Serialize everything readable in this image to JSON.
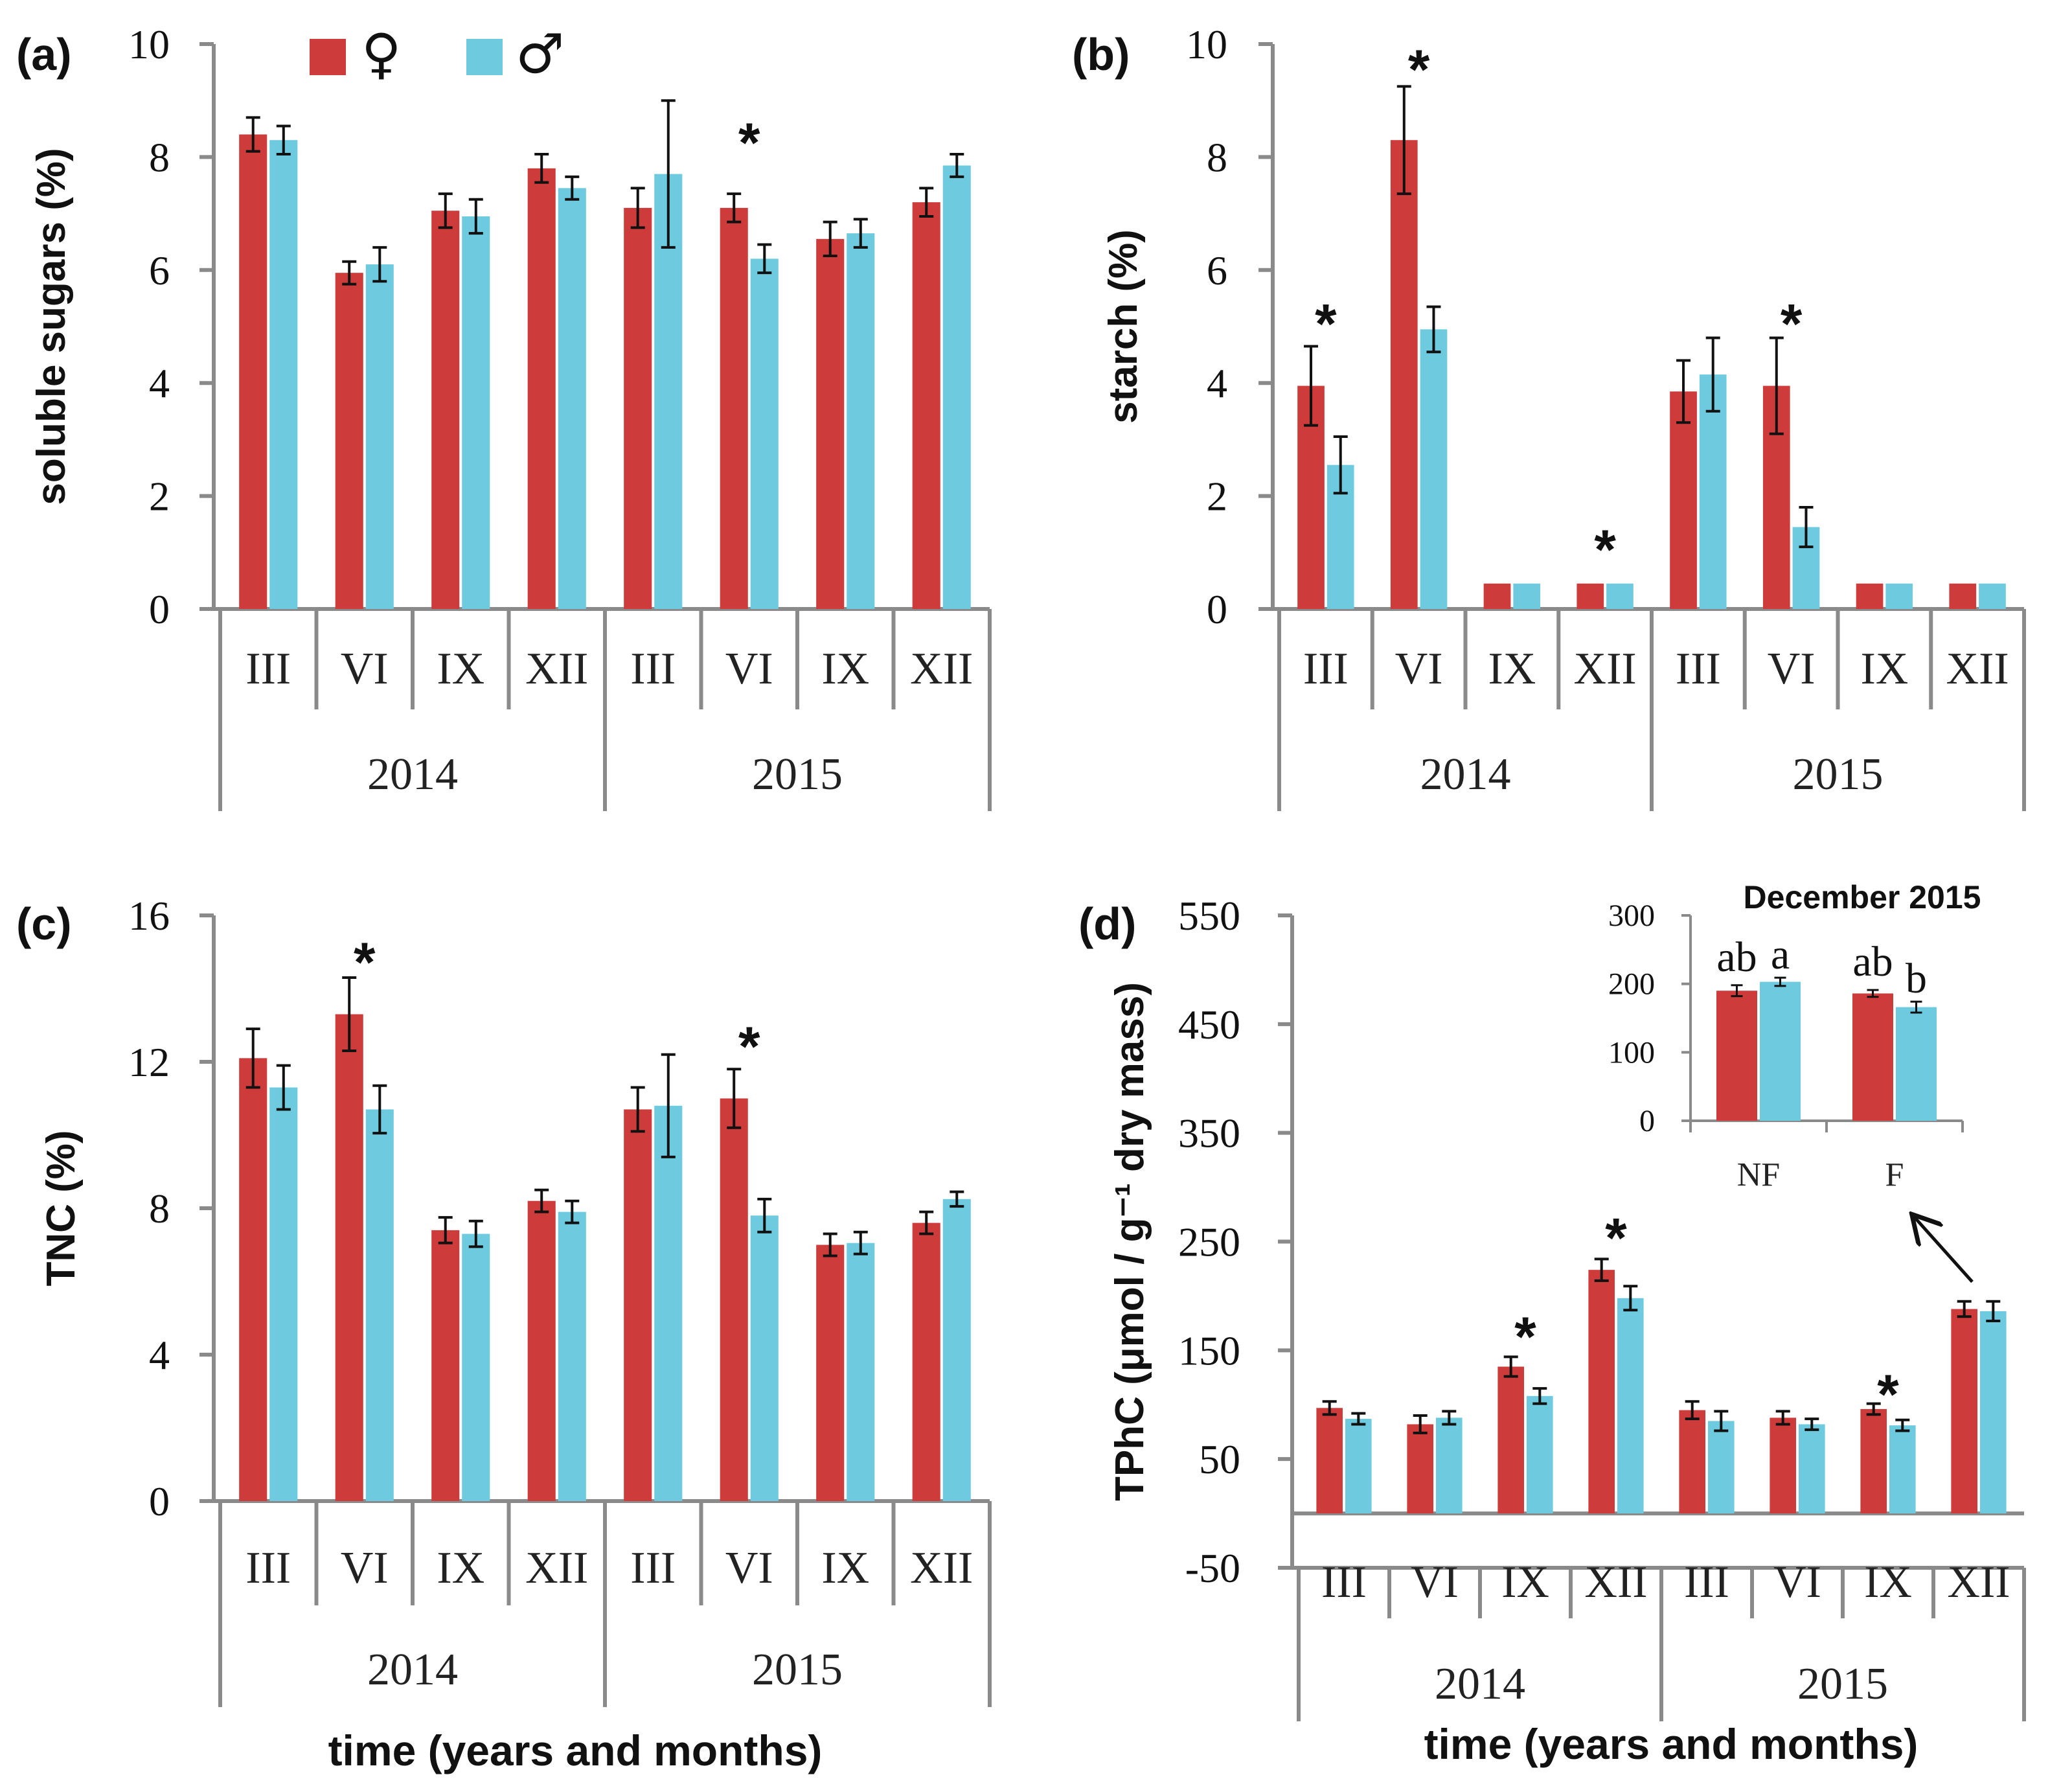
{
  "colors": {
    "female": "#cd3b3b",
    "male": "#6ecadf",
    "axis": "#8a8a8a",
    "error": "#111111"
  },
  "legend": {
    "female_symbol": "♀",
    "male_symbol": "♂"
  },
  "xlabel": "time (years and months)",
  "chart_data": [
    {
      "id": "a",
      "label": "(a)",
      "type": "bar",
      "title": "",
      "ylabel": "soluble sugars (%)",
      "xlabel": "",
      "ylim": [
        0,
        10
      ],
      "yticks": [
        0,
        2,
        4,
        6,
        8,
        10
      ],
      "categories": [
        "III",
        "VI",
        "IX",
        "XII",
        "III",
        "VI",
        "IX",
        "XII"
      ],
      "groups": [
        {
          "name": "2014",
          "count": 4
        },
        {
          "name": "2015",
          "count": 4
        }
      ],
      "series": [
        {
          "name": "♀",
          "values": [
            8.4,
            5.95,
            7.05,
            7.8,
            7.1,
            7.1,
            6.55,
            7.2
          ],
          "errors": [
            0.3,
            0.2,
            0.3,
            0.25,
            0.35,
            0.25,
            0.3,
            0.25
          ]
        },
        {
          "name": "♂",
          "values": [
            8.3,
            6.1,
            6.95,
            7.45,
            7.7,
            6.2,
            6.65,
            7.85
          ],
          "errors": [
            0.25,
            0.3,
            0.3,
            0.2,
            1.3,
            0.25,
            0.25,
            0.2
          ]
        }
      ],
      "significance": [
        {
          "index": 5,
          "label": "*",
          "value": 8.3
        }
      ]
    },
    {
      "id": "b",
      "label": "(b)",
      "type": "bar",
      "title": "",
      "ylabel": "starch (%)",
      "xlabel": "",
      "ylim": [
        0,
        10
      ],
      "yticks": [
        0,
        2,
        4,
        6,
        8,
        10
      ],
      "categories": [
        "III",
        "VI",
        "IX",
        "XII",
        "III",
        "VI",
        "IX",
        "XII"
      ],
      "groups": [
        {
          "name": "2014",
          "count": 4
        },
        {
          "name": "2015",
          "count": 4
        }
      ],
      "series": [
        {
          "name": "♀",
          "values": [
            3.95,
            8.3,
            0.45,
            0.45,
            3.85,
            3.95,
            0.45,
            0.45
          ],
          "errors": [
            0.7,
            0.95,
            0,
            0,
            0.55,
            0.85,
            0,
            0
          ]
        },
        {
          "name": "♂",
          "values": [
            2.55,
            4.95,
            0.45,
            0.45,
            4.15,
            1.45,
            0.45,
            0.45
          ],
          "errors": [
            0.5,
            0.4,
            0,
            0,
            0.65,
            0.35,
            0,
            0
          ]
        }
      ],
      "significance": [
        {
          "index": 0,
          "label": "*",
          "value": 5.1
        },
        {
          "index": 1,
          "label": "*",
          "value": 9.6
        },
        {
          "index": 3,
          "label": "*",
          "value": 1.1
        },
        {
          "index": 5,
          "label": "*",
          "value": 5.1
        }
      ]
    },
    {
      "id": "c",
      "label": "(c)",
      "type": "bar",
      "title": "",
      "ylabel": "TNC (%)",
      "xlabel": "",
      "ylim": [
        0,
        16
      ],
      "yticks": [
        0,
        4,
        8,
        12,
        16
      ],
      "categories": [
        "III",
        "VI",
        "IX",
        "XII",
        "III",
        "VI",
        "IX",
        "XII"
      ],
      "groups": [
        {
          "name": "2014",
          "count": 4
        },
        {
          "name": "2015",
          "count": 4
        }
      ],
      "series": [
        {
          "name": "♀",
          "values": [
            12.1,
            13.3,
            7.4,
            8.2,
            10.7,
            11.0,
            7.0,
            7.6
          ],
          "errors": [
            0.8,
            1.0,
            0.35,
            0.3,
            0.6,
            0.8,
            0.3,
            0.3
          ]
        },
        {
          "name": "♂",
          "values": [
            11.3,
            10.7,
            7.3,
            7.9,
            10.8,
            7.8,
            7.05,
            8.25
          ],
          "errors": [
            0.6,
            0.65,
            0.35,
            0.3,
            1.4,
            0.45,
            0.3,
            0.2
          ]
        }
      ],
      "significance": [
        {
          "index": 1,
          "label": "*",
          "value": 14.8
        },
        {
          "index": 5,
          "label": "*",
          "value": 12.5
        }
      ]
    },
    {
      "id": "d",
      "label": "(d)",
      "type": "bar",
      "title": "",
      "ylabel": "TPhC (μmol  / g⁻¹ dry mass)",
      "xlabel": "",
      "ylim": [
        -50,
        550
      ],
      "yticks": [
        -50,
        50,
        150,
        250,
        350,
        450,
        550
      ],
      "categories": [
        "III",
        "VI",
        "IX",
        "XII",
        "III",
        "VI",
        "IX",
        "XII"
      ],
      "groups": [
        {
          "name": "2014",
          "count": 4
        },
        {
          "name": "2015",
          "count": 4
        }
      ],
      "series": [
        {
          "name": "♀",
          "values": [
            97,
            82,
            135,
            224,
            95,
            88,
            96,
            188
          ],
          "errors": [
            6,
            8,
            9,
            10,
            8,
            6,
            5,
            7
          ]
        },
        {
          "name": "♂",
          "values": [
            87,
            88,
            108,
            198,
            85,
            82,
            81,
            186
          ],
          "errors": [
            5,
            6,
            7,
            11,
            9,
            5,
            5,
            9
          ]
        }
      ],
      "significance": [
        {
          "index": 2,
          "label": "*",
          "value": 165
        },
        {
          "index": 3,
          "label": "*",
          "value": 256
        },
        {
          "index": 6,
          "label": "*",
          "value": 112
        }
      ],
      "inset": {
        "title": "December 2015",
        "ylim": [
          0,
          300
        ],
        "yticks": [
          0,
          100,
          200,
          300
        ],
        "categories": [
          "NF",
          "F"
        ],
        "series": [
          {
            "name": "♀",
            "values": [
              190,
              186
            ],
            "errors": [
              8,
              5
            ]
          },
          {
            "name": "♂",
            "values": [
              203,
              166
            ],
            "errors": [
              6,
              8
            ]
          }
        ],
        "letters": [
          [
            "ab",
            "a"
          ],
          [
            "ab",
            "b"
          ]
        ],
        "arrow_from": "XII 2015",
        "arrow_to": "F"
      }
    }
  ]
}
